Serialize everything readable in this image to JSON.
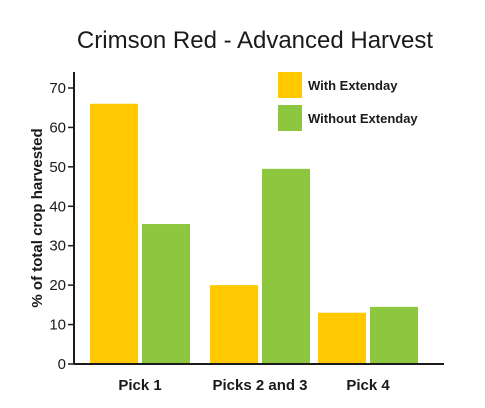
{
  "chart_data": {
    "type": "bar",
    "title": "Crimson Red - Advanced Harvest",
    "xlabel": "",
    "ylabel": "% of total crop harvested",
    "categories": [
      "Pick 1",
      "Picks 2 and 3",
      "Pick 4"
    ],
    "series": [
      {
        "name": "With Extenday",
        "values": [
          66,
          20,
          13
        ],
        "color": "#FFC800"
      },
      {
        "name": "Without Extenday",
        "values": [
          35.5,
          49.5,
          14.5
        ],
        "color": "#8DC63F"
      }
    ],
    "ylim": [
      0,
      70
    ],
    "yticks": [
      "0",
      "10",
      "20",
      "30",
      "40",
      "50",
      "60",
      "70"
    ],
    "grid": false,
    "legend_position": "top-right"
  }
}
